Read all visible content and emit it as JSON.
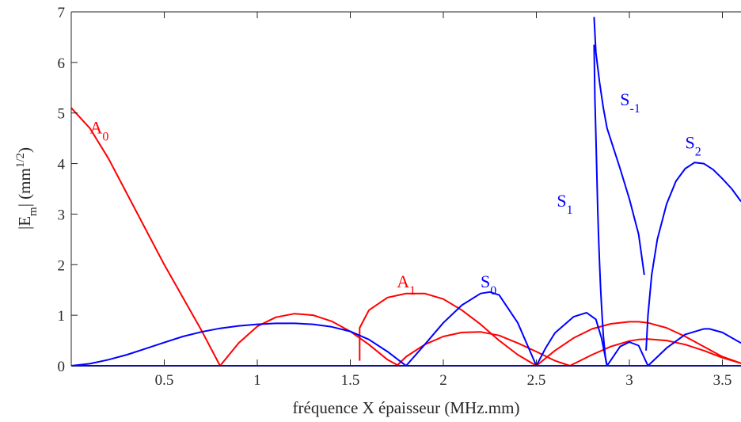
{
  "chart_data": {
    "type": "line",
    "title": "",
    "xlabel": "fréquence X épaisseur (MHz.mm)",
    "ylabel": "|E_m| (mm^1/2)",
    "xlim": [
      0,
      3.6
    ],
    "ylim": [
      0,
      7
    ],
    "x_ticks": [
      0.5,
      1,
      1.5,
      2,
      2.5,
      3,
      3.5
    ],
    "x_tick_labels": [
      "0.5",
      "1",
      "1.5",
      "2",
      "2.5",
      "3",
      "3.5"
    ],
    "y_ticks": [
      0,
      1,
      2,
      3,
      4,
      5,
      6,
      7
    ],
    "y_tick_labels": [
      "0",
      "1",
      "2",
      "3",
      "4",
      "5",
      "6",
      "7"
    ],
    "grid": false,
    "colors": {
      "antisymmetric": "#ff0000",
      "symmetric": "#0000ff"
    },
    "labels": [
      {
        "base": "A",
        "sub": "0",
        "color": "#ff0000",
        "at": [
          0.1,
          4.6
        ]
      },
      {
        "base": "A",
        "sub": "1",
        "color": "#ff0000",
        "at": [
          1.75,
          1.55
        ]
      },
      {
        "base": "S",
        "sub": "0",
        "color": "#0000ff",
        "at": [
          2.2,
          1.55
        ]
      },
      {
        "base": "S",
        "sub": "1",
        "color": "#0000ff",
        "at": [
          2.61,
          3.15
        ]
      },
      {
        "base": "S",
        "sub": "-1",
        "color": "#0000ff",
        "at": [
          2.95,
          5.15
        ]
      },
      {
        "base": "S",
        "sub": "2",
        "color": "#0000ff",
        "at": [
          3.3,
          4.3
        ]
      }
    ],
    "series": [
      {
        "color": "#ff0000",
        "x": [
          0,
          0.1,
          0.2,
          0.3,
          0.4,
          0.5,
          0.6,
          0.7,
          0.8
        ],
        "y": [
          5.1,
          4.7,
          4.1,
          3.4,
          2.7,
          2.0,
          1.35,
          0.7,
          0.0
        ]
      },
      {
        "color": "#ff0000",
        "x": [
          0.8,
          0.9,
          1.0,
          1.1,
          1.2,
          1.3,
          1.4,
          1.5,
          1.6,
          1.7,
          1.76
        ],
        "y": [
          0.0,
          0.45,
          0.78,
          0.96,
          1.03,
          1.0,
          0.88,
          0.68,
          0.42,
          0.12,
          0.0
        ]
      },
      {
        "color": "#ff0000",
        "x": [
          1.55,
          1.55,
          1.6,
          1.7,
          1.8,
          1.9,
          2.0,
          2.1,
          2.2,
          2.3,
          2.4,
          2.5
        ],
        "y": [
          0.1,
          0.75,
          1.1,
          1.35,
          1.43,
          1.43,
          1.32,
          1.1,
          0.82,
          0.5,
          0.22,
          0.0
        ]
      },
      {
        "color": "#ff0000",
        "x": [
          1.75,
          1.8,
          1.9,
          2.0,
          2.1,
          2.2,
          2.3,
          2.4,
          2.5,
          2.6,
          2.68
        ],
        "y": [
          0.0,
          0.18,
          0.42,
          0.58,
          0.66,
          0.67,
          0.6,
          0.45,
          0.28,
          0.1,
          0.0
        ]
      },
      {
        "color": "#ff0000",
        "x": [
          2.5,
          2.6,
          2.7,
          2.8,
          2.9,
          3.0,
          3.05,
          3.1,
          3.2,
          3.3,
          3.4,
          3.5,
          3.6
        ],
        "y": [
          0.0,
          0.3,
          0.55,
          0.73,
          0.83,
          0.87,
          0.87,
          0.85,
          0.75,
          0.58,
          0.38,
          0.18,
          0.05
        ]
      },
      {
        "color": "#ff0000",
        "x": [
          2.68,
          2.8,
          2.9,
          3.0,
          3.05,
          3.1,
          3.2,
          3.3,
          3.4,
          3.5,
          3.6
        ],
        "y": [
          0.0,
          0.22,
          0.38,
          0.49,
          0.52,
          0.53,
          0.5,
          0.42,
          0.3,
          0.16,
          0.05
        ]
      },
      {
        "color": "#0000ff",
        "x": [
          0,
          3.6
        ],
        "y": [
          0.0,
          0.0
        ]
      },
      {
        "color": "#0000ff",
        "x": [
          0,
          0.1,
          0.2,
          0.3,
          0.4,
          0.5,
          0.6,
          0.7,
          0.8,
          0.9,
          1.0,
          1.1,
          1.2,
          1.3,
          1.4,
          1.5,
          1.6,
          1.7,
          1.8
        ],
        "y": [
          0.0,
          0.04,
          0.12,
          0.22,
          0.34,
          0.46,
          0.58,
          0.67,
          0.74,
          0.79,
          0.82,
          0.84,
          0.84,
          0.82,
          0.77,
          0.68,
          0.52,
          0.28,
          0.0
        ]
      },
      {
        "color": "#0000ff",
        "x": [
          1.8,
          1.9,
          2.0,
          2.1,
          2.2,
          2.25,
          2.3,
          2.4,
          2.5
        ],
        "y": [
          0.0,
          0.42,
          0.85,
          1.2,
          1.43,
          1.46,
          1.4,
          0.85,
          0.0
        ]
      },
      {
        "color": "#0000ff",
        "x": [
          2.5,
          2.55,
          2.6,
          2.7,
          2.77,
          2.82,
          2.85,
          2.88
        ],
        "y": [
          0.0,
          0.35,
          0.65,
          0.97,
          1.05,
          0.92,
          0.55,
          0.0
        ]
      },
      {
        "color": "#0000ff",
        "x": [
          2.88,
          2.95,
          3.0,
          3.05,
          3.1
        ],
        "y": [
          0.0,
          0.38,
          0.47,
          0.4,
          0.0
        ]
      },
      {
        "color": "#0000ff",
        "x": [
          3.1,
          3.2,
          3.3,
          3.4,
          3.43,
          3.5,
          3.6
        ],
        "y": [
          0.0,
          0.35,
          0.62,
          0.73,
          0.73,
          0.66,
          0.45
        ]
      },
      {
        "color": "#0000ff",
        "x": [
          2.81,
          2.82,
          2.84,
          2.86,
          2.88
        ],
        "y": [
          6.9,
          6.2,
          5.6,
          5.1,
          4.7
        ]
      },
      {
        "color": "#0000ff",
        "x": [
          2.88,
          2.95,
          3.0,
          3.05,
          3.08
        ],
        "y": [
          4.7,
          3.9,
          3.3,
          2.6,
          1.8
        ]
      },
      {
        "color": "#0000ff",
        "x": [
          3.09,
          3.1,
          3.12,
          3.15,
          3.2,
          3.25,
          3.3,
          3.35,
          3.4,
          3.45,
          3.5,
          3.55,
          3.6
        ],
        "y": [
          0.3,
          1.0,
          1.8,
          2.5,
          3.2,
          3.65,
          3.9,
          4.02,
          4.0,
          3.88,
          3.7,
          3.5,
          3.25
        ]
      },
      {
        "color": "#0000ff",
        "x": [
          2.81,
          2.815,
          2.82,
          2.825,
          2.83,
          2.835,
          2.84,
          2.845,
          2.85,
          2.855,
          2.86,
          2.865,
          2.87,
          2.875,
          2.88
        ],
        "y": [
          6.35,
          5.25,
          4.55,
          3.8,
          3.1,
          2.5,
          2.0,
          1.55,
          1.2,
          0.9,
          0.6,
          0.4,
          0.2,
          0.08,
          0.0
        ]
      }
    ]
  }
}
